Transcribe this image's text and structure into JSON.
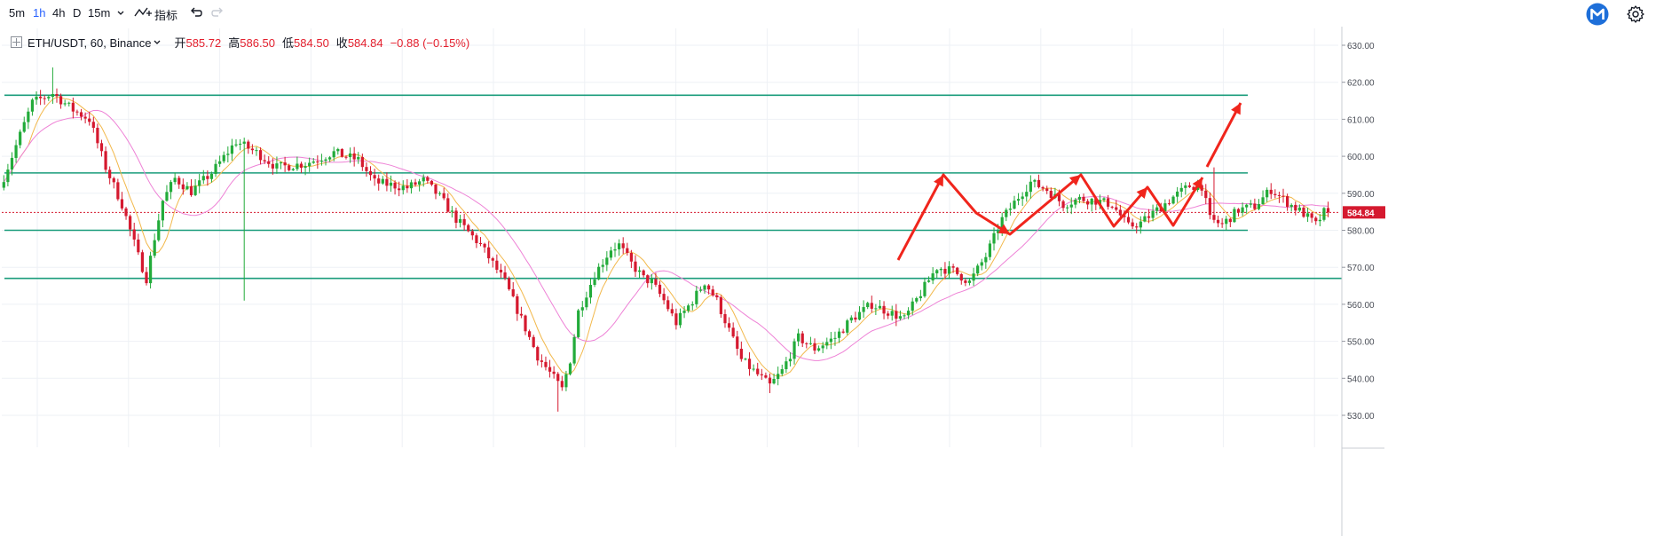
{
  "toolbar": {
    "intervals": [
      "5m",
      "1h",
      "4h",
      "D",
      "15m"
    ],
    "active_interval": "1h",
    "indicators_label": "指标"
  },
  "legend": {
    "symbol": "ETH/USDT, 60, Binance",
    "open_label": "开",
    "open": "585.72",
    "high_label": "高",
    "high": "586.50",
    "low_label": "低",
    "low": "584.50",
    "close_label": "收",
    "close": "584.84",
    "change": "−0.88 (−0.15%)"
  },
  "colors": {
    "up": "#22ab3a",
    "down": "#d5192f",
    "support_lines": "#1a9c7b",
    "price_line": "#d5192f",
    "ma_fast": "#f2b84b",
    "ma_slow": "#ee82d6",
    "annotation": "#f0251c",
    "grid": "#eef1f5"
  },
  "chart_data": {
    "type": "candlestick",
    "ylim": [
      527,
      635
    ],
    "y_ticks": [
      530,
      540,
      550,
      560,
      570,
      580,
      590,
      600,
      610,
      620,
      630
    ],
    "current_price": 584.84,
    "current_price_label": "584.84",
    "horizontal_levels": [
      616.5,
      595.5,
      580,
      567
    ],
    "guide_points": [
      [
        0,
        591.5
      ],
      [
        3,
        600
      ],
      [
        8,
        614.5
      ],
      [
        13,
        617
      ],
      [
        18,
        612.5
      ],
      [
        22,
        610
      ],
      [
        26,
        597
      ],
      [
        30,
        587
      ],
      [
        32,
        580
      ],
      [
        34,
        573
      ],
      [
        36,
        567
      ],
      [
        38,
        578
      ],
      [
        40,
        588
      ],
      [
        43,
        594
      ],
      [
        47,
        590.5
      ],
      [
        52,
        595.5
      ],
      [
        58,
        604
      ],
      [
        63,
        601
      ],
      [
        68,
        597
      ],
      [
        75,
        598
      ],
      [
        82,
        601
      ],
      [
        88,
        599
      ],
      [
        92,
        593
      ],
      [
        100,
        591.5
      ],
      [
        104,
        593.5
      ],
      [
        108,
        589
      ],
      [
        112,
        583
      ],
      [
        118,
        576
      ],
      [
        124,
        566
      ],
      [
        128,
        556
      ],
      [
        132,
        546
      ],
      [
        136,
        540
      ],
      [
        138,
        537
      ],
      [
        140,
        545
      ],
      [
        142,
        558
      ],
      [
        146,
        568
      ],
      [
        150,
        575
      ],
      [
        152,
        576
      ],
      [
        155,
        571
      ],
      [
        158,
        567
      ],
      [
        160,
        566
      ],
      [
        163,
        561
      ],
      [
        166,
        555
      ],
      [
        170,
        561
      ],
      [
        173,
        566
      ],
      [
        176,
        561
      ],
      [
        179,
        553
      ],
      [
        182,
        545
      ],
      [
        186,
        541
      ],
      [
        189,
        538
      ],
      [
        192,
        542
      ],
      [
        196,
        551
      ],
      [
        200,
        548
      ],
      [
        205,
        551
      ],
      [
        209,
        556
      ],
      [
        214,
        560
      ],
      [
        218,
        558
      ],
      [
        222,
        556
      ],
      [
        226,
        563
      ],
      [
        230,
        570
      ],
      [
        234,
        569
      ],
      [
        238,
        566
      ],
      [
        242,
        573
      ],
      [
        246,
        583
      ],
      [
        250,
        589
      ],
      [
        253,
        593
      ],
      [
        257,
        591
      ],
      [
        261,
        587
      ],
      [
        265,
        588.5
      ],
      [
        269,
        588
      ],
      [
        273,
        587
      ],
      [
        277,
        581
      ],
      [
        280,
        582
      ],
      [
        284,
        585.5
      ],
      [
        288,
        589
      ],
      [
        292,
        592
      ],
      [
        295,
        592
      ],
      [
        297,
        583
      ],
      [
        300,
        581.5
      ],
      [
        304,
        585.5
      ],
      [
        308,
        586.5
      ],
      [
        312,
        591
      ],
      [
        316,
        587.5
      ],
      [
        320,
        584.5
      ],
      [
        323,
        581.5
      ],
      [
        325,
        584.84
      ]
    ],
    "annotation_arrows": [
      {
        "points": [
          [
            1012,
            293
          ],
          [
            1063,
            197
          ],
          [
            1100,
            240
          ],
          [
            1138,
            264
          ],
          [
            1218,
            197
          ],
          [
            1255,
            255
          ],
          [
            1293,
            211
          ],
          [
            1322,
            254
          ],
          [
            1355,
            200
          ]
        ],
        "style": "zigzag"
      },
      {
        "points": [
          [
            1360,
            188
          ],
          [
            1398,
            116
          ]
        ],
        "style": "breakout"
      }
    ]
  }
}
